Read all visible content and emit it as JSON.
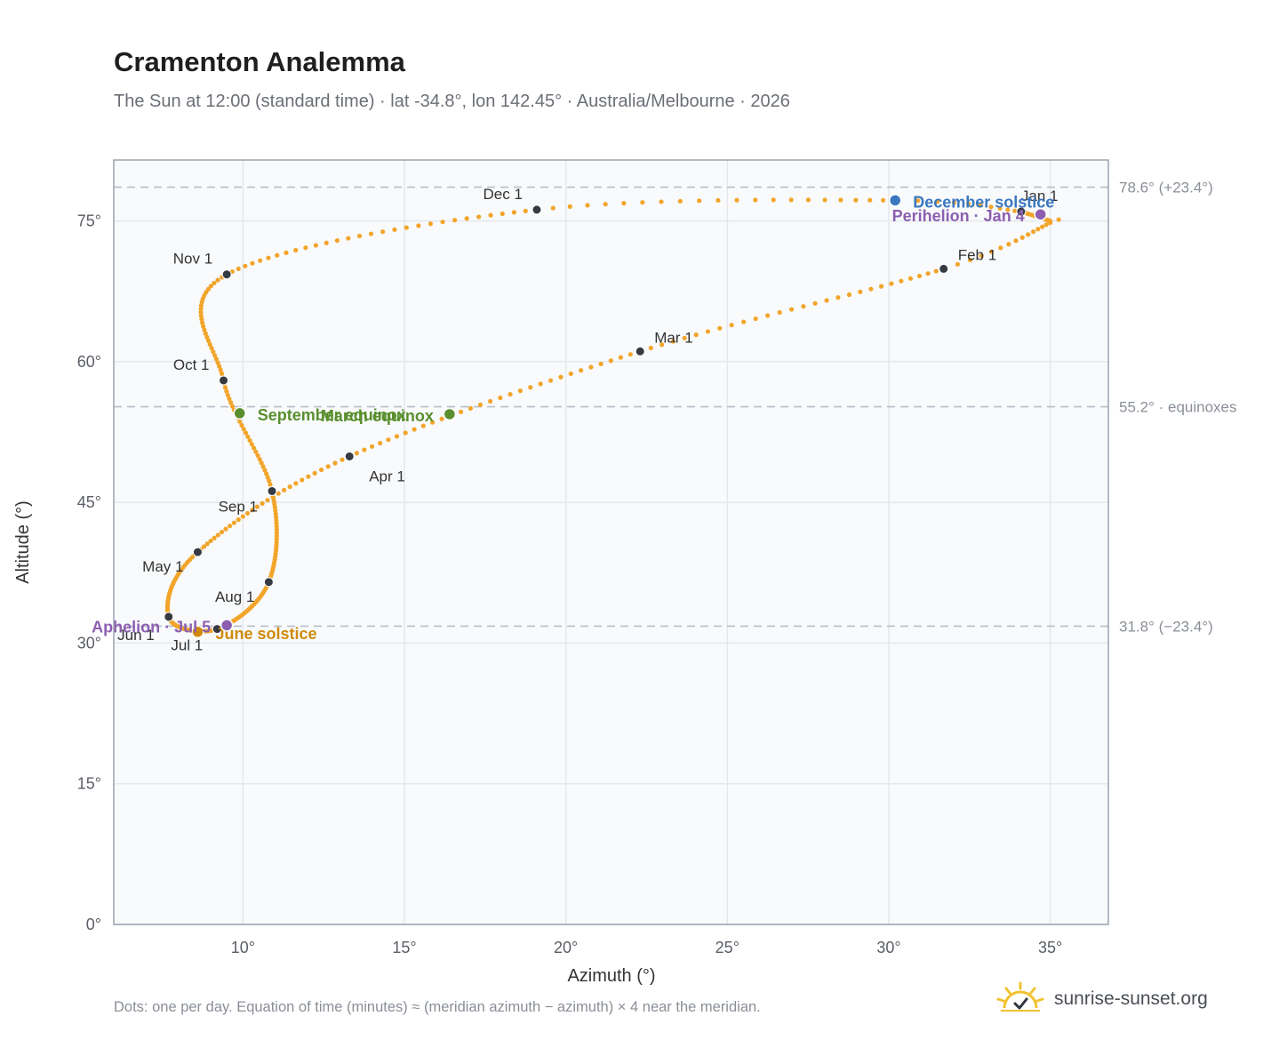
{
  "title": "Cramenton Analemma",
  "subtitle": "The Sun at 12:00 (standard time) · lat -34.8°, lon 142.45° · Australia/Melbourne · 2026",
  "footnote": "Dots: one per day. Equation of time (minutes) ≈ (meridian azimuth − azimuth) × 4 near the meridian.",
  "brand": {
    "name": "sunrise-sunset.org",
    "icon": "sun-logo-icon"
  },
  "colors": {
    "path": "#f2a52a",
    "month": "#363a42",
    "equinox": "#5a8f2e",
    "june": "#d08a0c",
    "december": "#3a78c0",
    "apsis": "#8c5fb0",
    "grid": "#e5e8ec",
    "plot_bg": "#f8fafc",
    "axis": "#9aa3ae"
  },
  "chart_data": {
    "type": "scatter",
    "title": "Cramenton Analemma",
    "xlabel": "Azimuth (°)",
    "ylabel": "Altitude (°)",
    "xlim": [
      6,
      36.8
    ],
    "ylim": [
      0,
      81.5
    ],
    "xticks": [
      10,
      15,
      20,
      25,
      30,
      35
    ],
    "xtick_labels": [
      "10°",
      "15°",
      "20°",
      "25°",
      "30°",
      "35°"
    ],
    "yticks": [
      0,
      15,
      30,
      45,
      60,
      75
    ],
    "ytick_labels": [
      "0°",
      "15°",
      "30°",
      "45°",
      "60°",
      "75°"
    ],
    "grid": true,
    "reference_lines": [
      {
        "altitude": 78.6,
        "label": "78.6° (+23.4°)"
      },
      {
        "altitude": 55.2,
        "label": "55.2° · equinoxes"
      },
      {
        "altitude": 31.8,
        "label": "31.8° (−23.4°)"
      }
    ],
    "month_markers": [
      {
        "label": "Jan 1",
        "az": 34.1,
        "alt": 76.0
      },
      {
        "label": "Feb 1",
        "az": 31.7,
        "alt": 69.9
      },
      {
        "label": "Mar 1",
        "az": 22.3,
        "alt": 61.1
      },
      {
        "label": "Apr 1",
        "az": 13.3,
        "alt": 49.9
      },
      {
        "label": "May 1",
        "az": 8.6,
        "alt": 39.7
      },
      {
        "label": "Jun 1",
        "az": 7.7,
        "alt": 32.8
      },
      {
        "label": "Jul 1",
        "az": 9.2,
        "alt": 31.5
      },
      {
        "label": "Aug 1",
        "az": 10.8,
        "alt": 36.5
      },
      {
        "label": "Sep 1",
        "az": 10.9,
        "alt": 46.2
      },
      {
        "label": "Oct 1",
        "az": 9.4,
        "alt": 58.0
      },
      {
        "label": "Nov 1",
        "az": 9.5,
        "alt": 69.3
      },
      {
        "label": "Dec 1",
        "az": 19.1,
        "alt": 76.2
      }
    ],
    "events": [
      {
        "label": "December solstice",
        "az": 30.2,
        "alt": 77.2,
        "kind": "december"
      },
      {
        "label": "Perihelion · Jan 4",
        "az": 34.7,
        "alt": 75.7,
        "kind": "apsis"
      },
      {
        "label": "March equinox",
        "az": 16.4,
        "alt": 54.4,
        "kind": "equinox"
      },
      {
        "label": "September equinox",
        "az": 9.9,
        "alt": 54.5,
        "kind": "equinox"
      },
      {
        "label": "June solstice",
        "az": 8.6,
        "alt": 31.2,
        "kind": "june"
      },
      {
        "label": "Aphelion · Jul 5",
        "az": 9.5,
        "alt": 31.9,
        "kind": "apsis"
      }
    ]
  }
}
